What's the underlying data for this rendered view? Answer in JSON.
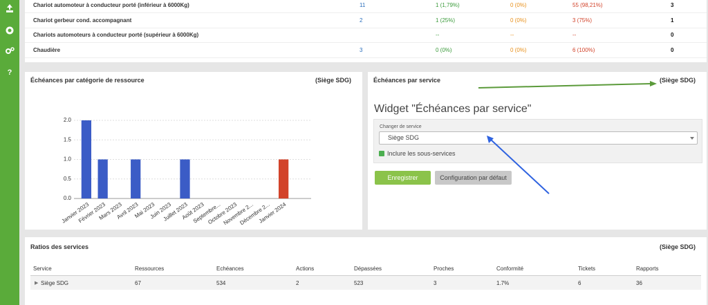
{
  "sidebar": {
    "help": "?"
  },
  "top_table": {
    "rows": [
      [
        "Chariot automoteur à conducteur porté (inférieur à 6000Kg)",
        "11",
        "1 (1,79%)",
        "0 (0%)",
        "55 (98,21%)",
        "3"
      ],
      [
        "Chariot gerbeur cond. accompagnant",
        "2",
        "1 (25%)",
        "0 (0%)",
        "3 (75%)",
        "1"
      ],
      [
        "Chariots automoteurs à conducteur porté (supérieur à 6000Kg)",
        "",
        "--",
        "--",
        "--",
        "0"
      ],
      [
        "Chaudière",
        "3",
        "0 (0%)",
        "0 (0%)",
        "6 (100%)",
        "0"
      ]
    ]
  },
  "chart_data": {
    "type": "bar",
    "title": "Échéances par catégorie de ressource",
    "scope": "(Siège SDG)",
    "categories": [
      "Janvier 2023",
      "Février 2023",
      "Mars 2023",
      "Avril 2023",
      "Mai 2023",
      "Juin 2023",
      "Juillet 2023",
      "Août 2023",
      "Septembre...",
      "Octobre 2023",
      "Novembre 2...",
      "Décembre 2...",
      "Janvier 2024"
    ],
    "values": [
      2,
      1,
      0,
      1,
      0,
      0,
      1,
      0,
      0,
      0,
      0,
      0,
      1
    ],
    "colors": [
      "#3b5cc6",
      "#3b5cc6",
      "#3b5cc6",
      "#3b5cc6",
      "#3b5cc6",
      "#3b5cc6",
      "#3b5cc6",
      "#3b5cc6",
      "#3b5cc6",
      "#3b5cc6",
      "#3b5cc6",
      "#3b5cc6",
      "#d2432a"
    ],
    "ylim": [
      0,
      2
    ],
    "yticks": [
      {
        "value": 0,
        "label": "0.0"
      },
      {
        "value": 0.5,
        "label": "0.5"
      },
      {
        "value": 1,
        "label": "1.0"
      },
      {
        "value": 1.5,
        "label": "1.5"
      },
      {
        "value": 2,
        "label": "2.0"
      }
    ],
    "grid": true
  },
  "widget_panel": {
    "title": "Échéances par service",
    "scope": "(Siège SDG)",
    "heading": "Widget \"Échéances par service\"",
    "select_label": "Changer de service",
    "select_value": "Siège SDG",
    "checkbox_label": "Inclure les sous-services",
    "save_button": "Enregistrer",
    "default_button": "Configuration par défaut"
  },
  "ratios": {
    "title": "Ratios des services",
    "scope": "(Siège SDG)",
    "headers": [
      "Service",
      "Ressources",
      "Echéances",
      "Actions",
      "Dépassées",
      "Proches",
      "Conformité",
      "Tickets",
      "Rapports"
    ],
    "rows": [
      [
        "Siège SDG",
        "67",
        "534",
        "2",
        "523",
        "3",
        "1.7%",
        "6",
        "36"
      ]
    ]
  }
}
